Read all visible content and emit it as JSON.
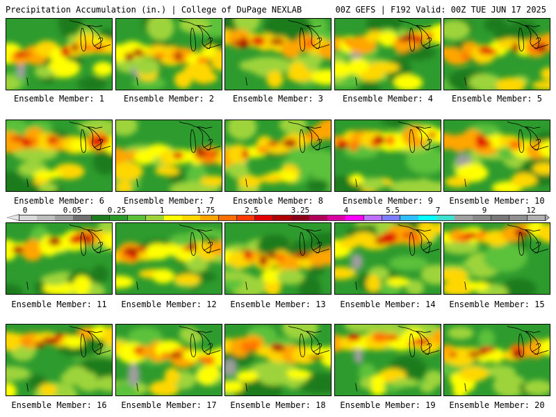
{
  "header": {
    "left": "Precipitation Accumulation (in.) | College of DuPage NEXLAB",
    "right": "00Z GEFS | F192 Valid: 00Z TUE JUN 17 2025"
  },
  "colorbar": {
    "tick_labels": [
      "0",
      "0.05",
      "0.25",
      "1",
      "1.75",
      "2.5",
      "3.25",
      "4",
      "5.5",
      "7",
      "9",
      "12"
    ],
    "colors": [
      "#d9d9d9",
      "#bdbdbd",
      "#9e9e9e",
      "#707070",
      "#1e7b1e",
      "#2a992a",
      "#5cc13a",
      "#9ed43a",
      "#ffff00",
      "#ffd700",
      "#ffa500",
      "#ff7000",
      "#ff3a00",
      "#e00000",
      "#b00000",
      "#8b0018",
      "#b0005a",
      "#d800a0",
      "#ff00ff",
      "#c070ff",
      "#7d7dff",
      "#30c0ff",
      "#00ffff",
      "#40e0d0",
      "#a0a0a0",
      "#8a8a8a",
      "#787878",
      "#909090",
      "#b0b0b0"
    ]
  },
  "panels": [
    {
      "label": "Ensemble Member: 1"
    },
    {
      "label": "Ensemble Member: 2"
    },
    {
      "label": "Ensemble Member: 3"
    },
    {
      "label": "Ensemble Member: 4"
    },
    {
      "label": "Ensemble Member: 5"
    },
    {
      "label": "Ensemble Member: 6"
    },
    {
      "label": "Ensemble Member: 7"
    },
    {
      "label": "Ensemble Member: 8"
    },
    {
      "label": "Ensemble Member: 9"
    },
    {
      "label": "Ensemble Member: 10"
    },
    {
      "label": "Ensemble Member: 11"
    },
    {
      "label": "Ensemble Member: 12"
    },
    {
      "label": "Ensemble Member: 13"
    },
    {
      "label": "Ensemble Member: 14"
    },
    {
      "label": "Ensemble Member: 15"
    },
    {
      "label": "Ensemble Member: 16"
    },
    {
      "label": "Ensemble Member: 17"
    },
    {
      "label": "Ensemble Member: 18"
    },
    {
      "label": "Ensemble Member: 19"
    },
    {
      "label": "Ensemble Member: 20"
    }
  ]
}
